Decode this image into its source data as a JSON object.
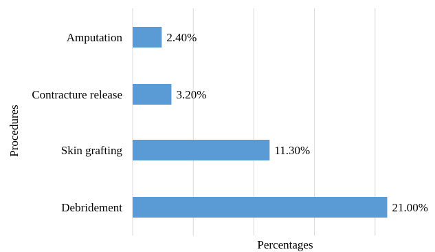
{
  "chart_data": {
    "type": "bar",
    "orientation": "horizontal",
    "categories": [
      "Amputation",
      "Contracture release",
      "Skin grafting",
      "Debridement"
    ],
    "values": [
      2.4,
      3.2,
      11.3,
      21.0
    ],
    "data_labels": [
      "2.40%",
      "3.20%",
      "11.30%",
      "21.00%"
    ],
    "xlabel": "Percentages",
    "ylabel": "Procedures",
    "xlim": [
      0,
      25
    ],
    "grid": "vertical",
    "tick_labels_shown": false,
    "legend": "none",
    "bar_color": "#5B9BD5",
    "grid_color": "#D9D9D9"
  }
}
